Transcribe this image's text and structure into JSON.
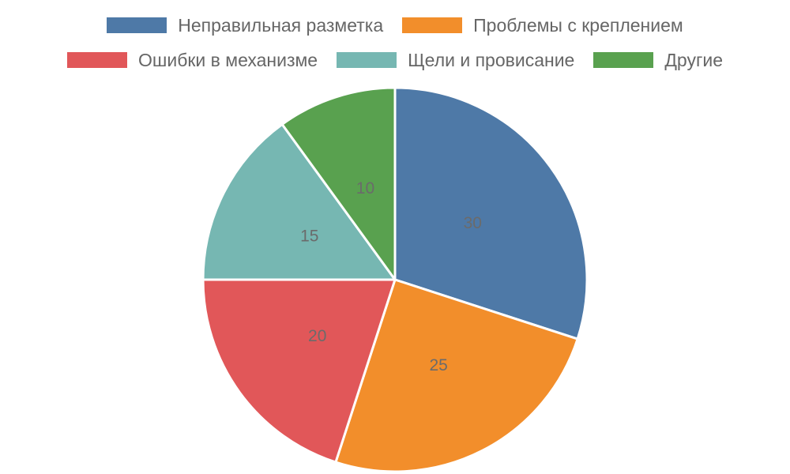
{
  "chart_data": {
    "type": "pie",
    "categories": [
      "Неправильная разметка",
      "Проблемы с креплением",
      "Ошибки в механизме",
      "Щели и провисание",
      "Другие"
    ],
    "values": [
      30,
      25,
      20,
      15,
      10
    ],
    "colors": [
      "#4e79a7",
      "#f28e2b",
      "#e15759",
      "#76b7b2",
      "#59a14f"
    ],
    "legend_position": "top",
    "title": ""
  }
}
